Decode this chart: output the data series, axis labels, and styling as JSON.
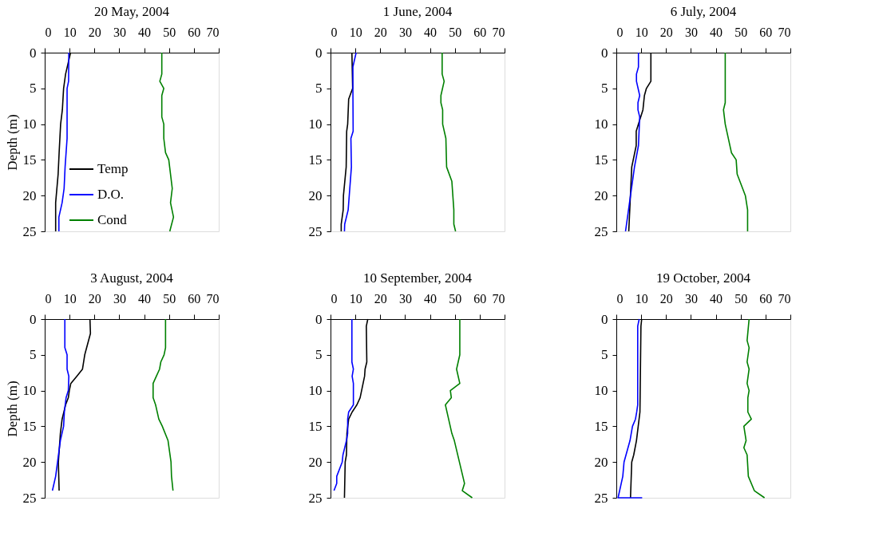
{
  "chart_data": [
    {
      "type": "line",
      "title": "20 May, 2004",
      "ylabel": "Depth (m)",
      "xlim": [
        0,
        70
      ],
      "ylim": [
        25,
        0
      ],
      "xticks": [
        0,
        10,
        20,
        30,
        40,
        50,
        60,
        70
      ],
      "yticks": [
        0,
        5,
        10,
        15,
        20,
        25
      ],
      "grid": false,
      "legend": "bottom left",
      "series": [
        {
          "name": "Temp",
          "color": "#000000",
          "x": [
            10.4,
            8.4,
            7.6,
            7.1,
            6.4,
            5.8,
            5.4,
            4.4,
            4.4
          ],
          "values": [
            0,
            3,
            5,
            8,
            10,
            14,
            17,
            21,
            25
          ]
        },
        {
          "name": "D.O.",
          "color": "#0000ff",
          "x": [
            9.7,
            9.6,
            9.0,
            9.0,
            8.2,
            7.8,
            7.0,
            5.7,
            5.7
          ],
          "values": [
            0,
            4,
            5,
            12,
            16,
            19,
            21,
            23,
            25
          ]
        },
        {
          "name": "Cond",
          "color": "#008000",
          "x": [
            47.1,
            47.1,
            46.3,
            47.9,
            47.1,
            47.1,
            47.9,
            47.9,
            48.6,
            49.9,
            51.3,
            50.6,
            51.8,
            50.3
          ],
          "values": [
            0,
            3,
            4,
            5,
            6,
            9,
            10,
            12,
            14,
            15,
            19,
            21,
            23,
            25
          ]
        }
      ]
    },
    {
      "type": "line",
      "title": "1 June, 2004",
      "xlim": [
        0,
        70
      ],
      "ylim": [
        25,
        0
      ],
      "xticks": [
        0,
        10,
        20,
        30,
        40,
        50,
        60,
        70
      ],
      "yticks": [
        0,
        5,
        10,
        15,
        20,
        25
      ],
      "grid": false,
      "series": [
        {
          "color": "#000000",
          "x": [
            8.6,
            8.9,
            7.3,
            6.9,
            6.5,
            6.3,
            5.2,
            5.1,
            4.3,
            4.3
          ],
          "values": [
            0,
            5,
            6.5,
            10,
            11,
            16,
            20,
            22,
            24,
            25
          ]
        },
        {
          "color": "#0000ff",
          "x": [
            10.3,
            9.0,
            9.0,
            9.1,
            8.2,
            8.4,
            7.1,
            5.7,
            5.6
          ],
          "values": [
            0,
            2,
            5,
            11,
            12,
            16,
            22,
            24,
            25
          ]
        },
        {
          "color": "#008000",
          "x": [
            44.9,
            44.9,
            45.7,
            44.4,
            44.4,
            45.1,
            45.1,
            46.4,
            46.7,
            48.8,
            49.6,
            49.6,
            50.3
          ],
          "values": [
            0,
            3,
            4,
            6,
            7,
            8,
            10,
            12,
            16,
            18,
            22,
            24,
            25
          ]
        }
      ]
    },
    {
      "type": "line",
      "title": "6 July, 2004",
      "xlim": [
        0,
        70
      ],
      "ylim": [
        25,
        0
      ],
      "xticks": [
        0,
        10,
        20,
        30,
        40,
        50,
        60,
        70
      ],
      "yticks": [
        0,
        5,
        10,
        15,
        20,
        25
      ],
      "grid": false,
      "series": [
        {
          "color": "#000000",
          "x": [
            13.9,
            13.9,
            12.1,
            11.3,
            10.7,
            8.9,
            8.0,
            8.0,
            6.2,
            5.0
          ],
          "values": [
            0,
            4,
            5,
            6,
            8,
            10,
            11,
            13,
            16,
            25
          ]
        },
        {
          "color": "#0000ff",
          "x": [
            8.9,
            8.9,
            8.1,
            8.1,
            9.4,
            8.7,
            8.7,
            9.4,
            8.9,
            7.3,
            3.7
          ],
          "values": [
            0,
            2,
            3,
            4,
            6,
            7,
            8,
            9,
            13,
            16,
            25
          ]
        },
        {
          "color": "#008000",
          "x": [
            43.8,
            43.8,
            43.1,
            43.8,
            46.3,
            48.2,
            48.6,
            51.9,
            52.8,
            52.8
          ],
          "values": [
            0,
            7,
            8,
            10,
            14,
            15,
            17,
            20,
            22,
            25
          ]
        }
      ]
    },
    {
      "type": "line",
      "title": "3 August, 2004",
      "ylabel": "Depth (m)",
      "xlim": [
        0,
        70
      ],
      "ylim": [
        25,
        0
      ],
      "xticks": [
        0,
        10,
        20,
        30,
        40,
        50,
        60,
        70
      ],
      "yticks": [
        0,
        5,
        10,
        15,
        20,
        25
      ],
      "grid": false,
      "series": [
        {
          "color": "#000000",
          "x": [
            18.2,
            18.4,
            16.1,
            15.2,
            12.9,
            10.5,
            9.9,
            9.5,
            8.4,
            7.0,
            6.3,
            5.5,
            5.8
          ],
          "values": [
            0,
            2,
            5,
            7,
            8,
            9,
            10,
            11,
            12,
            14,
            16,
            20,
            24
          ]
        },
        {
          "color": "#0000ff",
          "x": [
            8.1,
            8.1,
            9.0,
            9.0,
            9.7,
            9.5,
            8.6,
            7.9,
            7.6,
            6.3,
            4.4,
            3.1
          ],
          "values": [
            0,
            4,
            5,
            7,
            8,
            10,
            11,
            13,
            15,
            17,
            22,
            24
          ]
        },
        {
          "color": "#008000",
          "x": [
            48.6,
            48.6,
            48.0,
            46.7,
            46.2,
            44.9,
            43.6,
            43.6,
            44.6,
            45.9,
            47.3,
            49.6,
            50.8,
            51.0,
            51.6
          ],
          "values": [
            0,
            4,
            5,
            6,
            7,
            8,
            9,
            11,
            12,
            14,
            15,
            17,
            20,
            22,
            24
          ]
        }
      ]
    },
    {
      "type": "line",
      "title": "10 September, 2004",
      "xlim": [
        0,
        70
      ],
      "ylim": [
        25,
        0
      ],
      "xticks": [
        0,
        10,
        20,
        30,
        40,
        50,
        60,
        70
      ],
      "yticks": [
        0,
        5,
        10,
        15,
        20,
        25
      ],
      "grid": false,
      "series": [
        {
          "color": "#000000",
          "x": [
            15.0,
            14.4,
            14.6,
            13.9,
            13.7,
            11.9,
            10.6,
            8.7,
            7.3,
            6.6,
            6.4,
            5.9,
            5.6
          ],
          "values": [
            0,
            1,
            6,
            7,
            8,
            11,
            12,
            13,
            14,
            16,
            19,
            20,
            25
          ]
        },
        {
          "color": "#0000ff",
          "x": [
            8.6,
            8.6,
            9.2,
            8.7,
            9.2,
            9.2,
            7.3,
            6.9,
            6.9,
            6.4,
            5.0,
            4.7,
            2.5,
            2.5,
            1.4
          ],
          "values": [
            0,
            6,
            7,
            8,
            9,
            12,
            13,
            14,
            16,
            17,
            19,
            20,
            22,
            23,
            24
          ]
        },
        {
          "color": "#008000",
          "x": [
            52.0,
            52.0,
            50.7,
            52.0,
            48.2,
            48.6,
            46.2,
            47.5,
            48.8,
            49.8,
            53.9,
            53.0,
            57.0
          ],
          "values": [
            0,
            5,
            7,
            9,
            10,
            11,
            12,
            14,
            16,
            17,
            23,
            24,
            25
          ]
        }
      ]
    },
    {
      "type": "line",
      "title": "19 October, 2004",
      "xlim": [
        0,
        70
      ],
      "ylim": [
        25,
        0
      ],
      "xticks": [
        0,
        10,
        20,
        30,
        40,
        50,
        60,
        70
      ],
      "yticks": [
        0,
        5,
        10,
        15,
        20,
        25
      ],
      "grid": false,
      "series": [
        {
          "color": "#000000",
          "x": [
            10.2,
            9.9,
            9.5,
            8.8,
            8.1,
            7.0,
            6.2,
            5.7
          ],
          "values": [
            0,
            1,
            13,
            15,
            17,
            19,
            20,
            25
          ]
        },
        {
          "color": "#0000ff",
          "x": [
            9.2,
            8.6,
            8.6,
            8.2,
            7.7,
            6.5,
            5.5,
            3.1,
            2.6,
            0.7,
            10.4
          ],
          "values": [
            0,
            1,
            12,
            13,
            14,
            15,
            17,
            20,
            22,
            25,
            25
          ]
        },
        {
          "color": "#008000",
          "x": [
            53.4,
            52.6,
            53.4,
            52.6,
            53.4,
            52.6,
            53.4,
            52.9,
            52.9,
            54.3,
            51.3,
            52.2,
            51.3,
            52.6,
            53.1,
            55.5,
            59.6
          ],
          "values": [
            0,
            3,
            4,
            6,
            7,
            9,
            10,
            11,
            13,
            14,
            15,
            17,
            18,
            19,
            22,
            24,
            25
          ]
        }
      ]
    }
  ]
}
